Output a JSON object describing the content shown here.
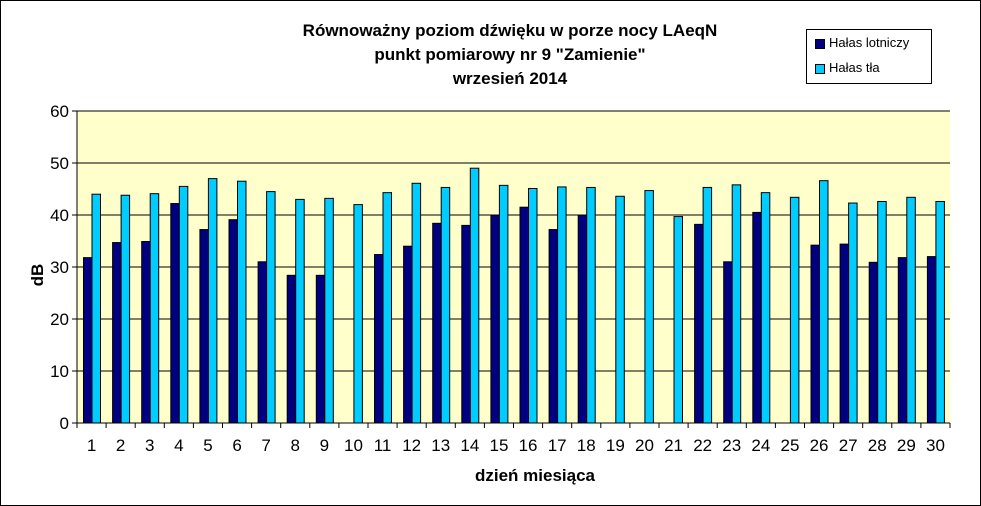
{
  "chart_data": {
    "type": "bar",
    "title_lines": [
      "Równoważny poziom dźwięku w porze nocy LAeqN",
      "punkt pomiarowy nr 9 \"Zamienie\"",
      "wrzesień 2014"
    ],
    "xlabel": "dzień miesiąca",
    "ylabel": "dB",
    "ylim": [
      0,
      60
    ],
    "yticks": [
      0,
      10,
      20,
      30,
      40,
      50,
      60
    ],
    "grid": true,
    "legend_position": "top-right",
    "plot_background": "#ffffcc",
    "categories": [
      "1",
      "2",
      "3",
      "4",
      "5",
      "6",
      "7",
      "8",
      "9",
      "10",
      "11",
      "12",
      "13",
      "14",
      "15",
      "16",
      "17",
      "18",
      "19",
      "20",
      "21",
      "22",
      "23",
      "24",
      "25",
      "26",
      "27",
      "28",
      "29",
      "30"
    ],
    "series": [
      {
        "name": "Hałas lotniczy",
        "color": "#000080",
        "values": [
          31.8,
          34.7,
          34.9,
          42.2,
          37.2,
          39.1,
          31.0,
          28.4,
          28.4,
          null,
          32.4,
          34.0,
          38.4,
          38.0,
          40.0,
          41.5,
          37.2,
          40.0,
          null,
          null,
          null,
          38.2,
          31.0,
          40.5,
          null,
          34.2,
          34.4,
          30.9,
          31.8,
          32.0
        ]
      },
      {
        "name": "Hałas tła",
        "color": "#00ccff",
        "values": [
          44.0,
          43.8,
          44.1,
          45.5,
          47.0,
          46.5,
          44.5,
          43.0,
          43.2,
          42.0,
          44.3,
          46.1,
          45.3,
          49.0,
          45.7,
          45.1,
          45.4,
          45.3,
          43.6,
          44.7,
          39.7,
          45.3,
          45.8,
          44.3,
          43.4,
          46.6,
          42.3,
          42.6,
          43.4,
          42.6
        ]
      }
    ]
  }
}
